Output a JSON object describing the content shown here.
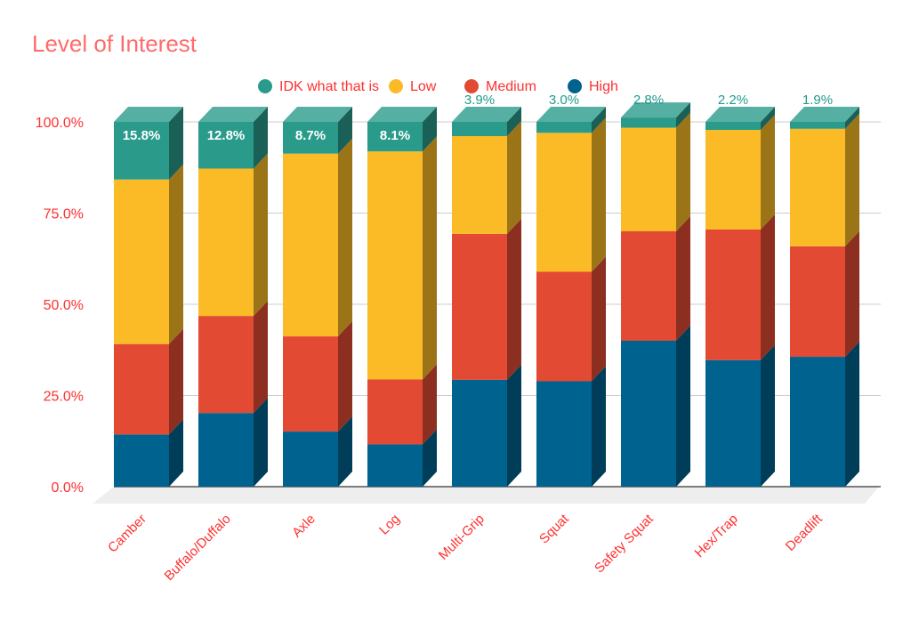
{
  "colors": {
    "title": "#ff6b6b",
    "axis_text": "#ff3030",
    "gridline": "#cccccc",
    "floor": "#eeeeee",
    "legend_text": "#ff3030",
    "label_light": "#ffffff",
    "label_dark": "#1f9b8e"
  },
  "chart_data": {
    "type": "bar",
    "stacked": true,
    "normalized": true,
    "three_d": true,
    "title": "Level of Interest",
    "xlabel": "",
    "ylabel": "",
    "ylim": [
      0,
      100
    ],
    "yticks": [
      0,
      25,
      50,
      75,
      100
    ],
    "ytick_labels": [
      "0.0%",
      "25.0%",
      "50.0%",
      "75.0%",
      "100.0%"
    ],
    "legend_position": "top-center",
    "categories": [
      "Camber",
      "Buffalo/Duffalo",
      "Axle",
      "Log",
      "Multi-Grip",
      "Squat",
      "Safety Squat",
      "Hex/Trap",
      "Deadlift"
    ],
    "series": [
      {
        "name": "High",
        "color": "#00628f",
        "values": [
          14.3,
          20.2,
          15.1,
          11.6,
          29.3,
          28.9,
          40.0,
          34.7,
          35.6
        ]
      },
      {
        "name": "Medium",
        "color": "#e24a33",
        "values": [
          24.8,
          26.6,
          26.1,
          17.8,
          40.0,
          30.0,
          30.0,
          35.8,
          30.3
        ]
      },
      {
        "name": "Low",
        "color": "#fbbb26",
        "values": [
          45.1,
          40.4,
          50.1,
          62.5,
          26.8,
          38.1,
          28.4,
          27.3,
          32.2
        ]
      },
      {
        "name": "IDK what that is",
        "color": "#2a9b8b",
        "values": [
          15.8,
          12.8,
          8.7,
          8.1,
          3.9,
          3.0,
          2.8,
          2.2,
          1.9
        ]
      }
    ],
    "legend_order": [
      "IDK what that is",
      "Low",
      "Medium",
      "High"
    ],
    "data_labels": {
      "series": "IDK what that is",
      "labels": [
        "15.8%",
        "12.8%",
        "8.7%",
        "8.1%",
        "3.9%",
        "3.0%",
        "2.8%",
        "2.2%",
        "1.9%"
      ]
    }
  }
}
